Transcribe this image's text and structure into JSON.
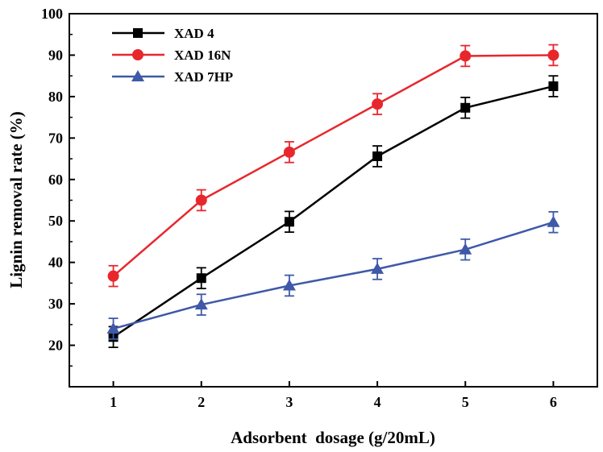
{
  "chart_data": {
    "type": "line",
    "title": "",
    "xlabel": "Adsorbent  dosage (g/20mL)",
    "ylabel": "Lignin removal rate (%)",
    "x": [
      1,
      2,
      3,
      4,
      5,
      6
    ],
    "xlim": [
      0.5,
      6.5
    ],
    "ylim": [
      10,
      100
    ],
    "xticks": [
      1,
      2,
      3,
      4,
      5,
      6
    ],
    "yticks": [
      20,
      30,
      40,
      50,
      60,
      70,
      80,
      90,
      100
    ],
    "grid": false,
    "legend_position": "top-left",
    "series": [
      {
        "name": "XAD 4",
        "color": "#000000",
        "marker": "square",
        "values": [
          22.0,
          36.2,
          49.8,
          65.6,
          77.3,
          82.5
        ],
        "errors": [
          2.5,
          2.5,
          2.5,
          2.5,
          2.5,
          2.5
        ]
      },
      {
        "name": "XAD 16N",
        "color": "#e8272d",
        "marker": "circle",
        "values": [
          36.7,
          55.0,
          66.6,
          78.2,
          89.8,
          90.0
        ],
        "errors": [
          2.5,
          2.5,
          2.5,
          2.5,
          2.5,
          2.5
        ]
      },
      {
        "name": "XAD 7HP",
        "color": "#3f59a8",
        "marker": "triangle",
        "values": [
          24.0,
          29.8,
          34.4,
          38.4,
          43.1,
          49.7
        ],
        "errors": [
          2.5,
          2.5,
          2.5,
          2.5,
          2.5,
          2.5
        ]
      }
    ]
  }
}
